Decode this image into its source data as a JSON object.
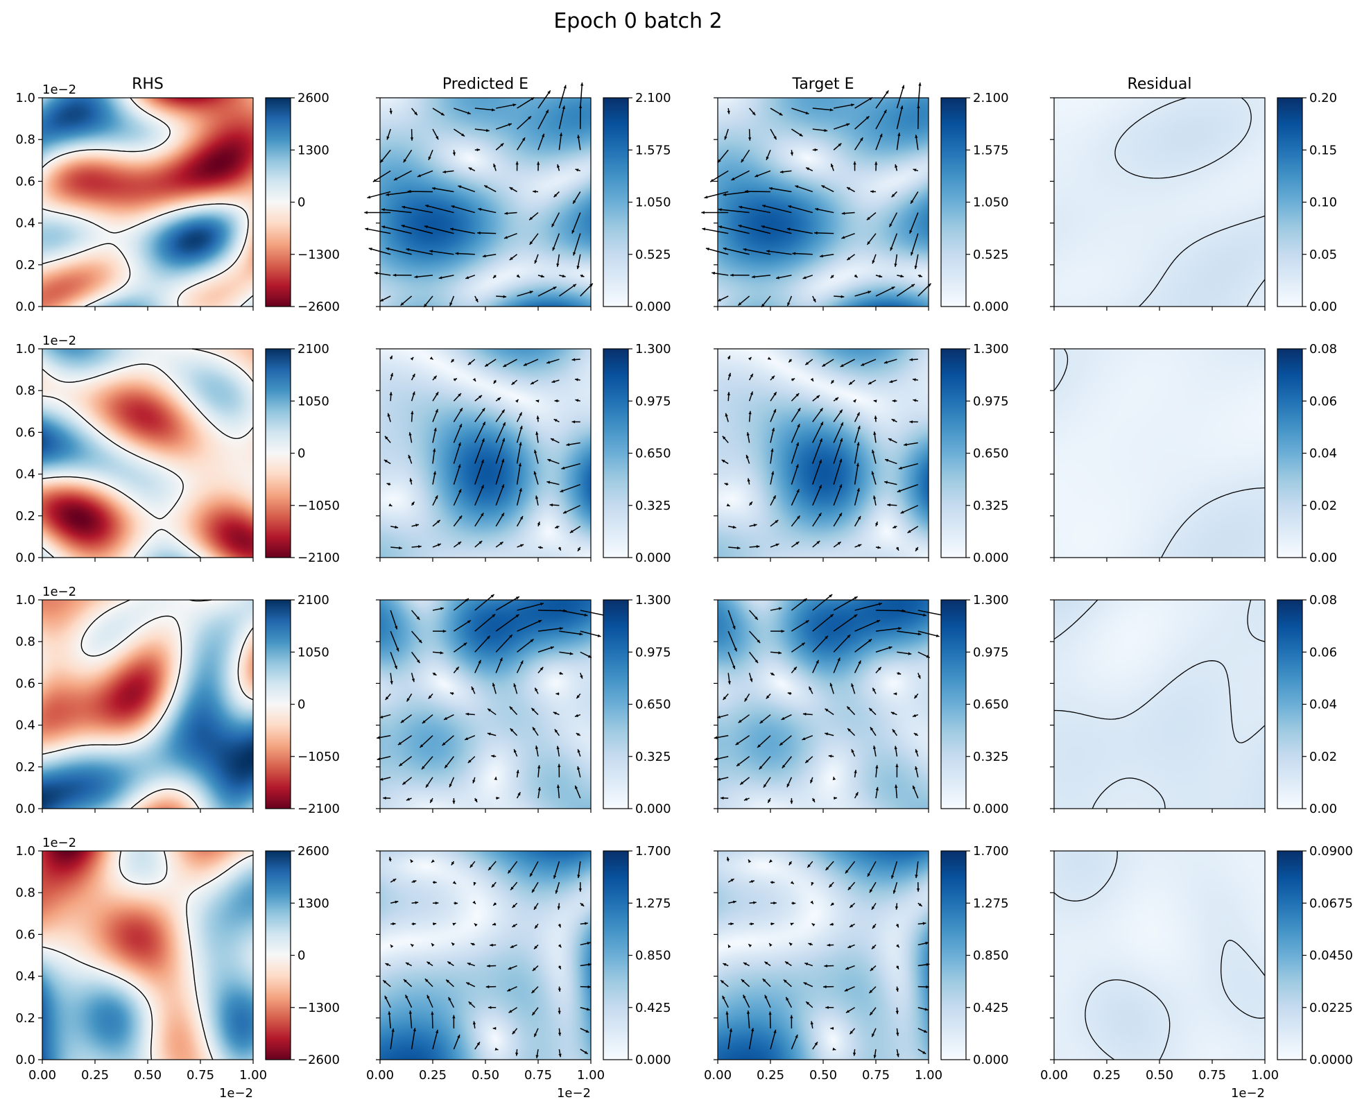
{
  "figure": {
    "title": "Epoch 0 batch 2"
  },
  "colors": {
    "field_cmap": "RdBu",
    "magnitude_cmap": "Blues",
    "contour": "#000000",
    "axes": "#000000"
  },
  "chart_data": {
    "type": "heatmap",
    "x_range": [
      0,
      1.0
    ],
    "y_range": [
      0,
      1.0
    ],
    "x_ticks": [
      "0.00",
      "0.25",
      "0.50",
      "0.75",
      "1.00"
    ],
    "y_ticks": [
      "0.0",
      "0.2",
      "0.4",
      "0.6",
      "0.8",
      "1.0"
    ],
    "axis_scale_label": "1e−2",
    "columns": [
      {
        "title": "RHS",
        "cmap": "RdBu",
        "contours": true,
        "quiver": false
      },
      {
        "title": "Predicted E",
        "cmap": "Blues",
        "contours": false,
        "quiver": true
      },
      {
        "title": "Target E",
        "cmap": "Blues",
        "contours": false,
        "quiver": true
      },
      {
        "title": "Residual",
        "cmap": "Blues",
        "contours": true,
        "quiver": false
      }
    ],
    "rows": [
      {
        "seed": 11,
        "colorbars": [
          {
            "ticks": [
              "2600",
              "1300",
              "0",
              "−1300",
              "−2600"
            ]
          },
          {
            "ticks": [
              "2.100",
              "1.575",
              "1.050",
              "0.525",
              "0.000"
            ]
          },
          {
            "ticks": [
              "2.100",
              "1.575",
              "1.050",
              "0.525",
              "0.000"
            ]
          },
          {
            "ticks": [
              "0.20",
              "0.15",
              "0.10",
              "0.05",
              "0.00"
            ]
          }
        ]
      },
      {
        "seed": 23,
        "colorbars": [
          {
            "ticks": [
              "2100",
              "1050",
              "0",
              "−1050",
              "−2100"
            ]
          },
          {
            "ticks": [
              "1.300",
              "0.975",
              "0.650",
              "0.325",
              "0.000"
            ]
          },
          {
            "ticks": [
              "1.300",
              "0.975",
              "0.650",
              "0.325",
              "0.000"
            ]
          },
          {
            "ticks": [
              "0.08",
              "0.06",
              "0.04",
              "0.02",
              "0.00"
            ]
          }
        ]
      },
      {
        "seed": 37,
        "colorbars": [
          {
            "ticks": [
              "2100",
              "1050",
              "0",
              "−1050",
              "−2100"
            ]
          },
          {
            "ticks": [
              "1.300",
              "0.975",
              "0.650",
              "0.325",
              "0.000"
            ]
          },
          {
            "ticks": [
              "1.300",
              "0.975",
              "0.650",
              "0.325",
              "0.000"
            ]
          },
          {
            "ticks": [
              "0.08",
              "0.06",
              "0.04",
              "0.02",
              "0.00"
            ]
          }
        ]
      },
      {
        "seed": 53,
        "colorbars": [
          {
            "ticks": [
              "2600",
              "1300",
              "0",
              "−1300",
              "−2600"
            ]
          },
          {
            "ticks": [
              "1.700",
              "1.275",
              "0.850",
              "0.425",
              "0.000"
            ]
          },
          {
            "ticks": [
              "1.700",
              "1.275",
              "0.850",
              "0.425",
              "0.000"
            ]
          },
          {
            "ticks": [
              "0.0900",
              "0.0675",
              "0.0450",
              "0.0225",
              "0.0000"
            ]
          }
        ]
      }
    ]
  }
}
